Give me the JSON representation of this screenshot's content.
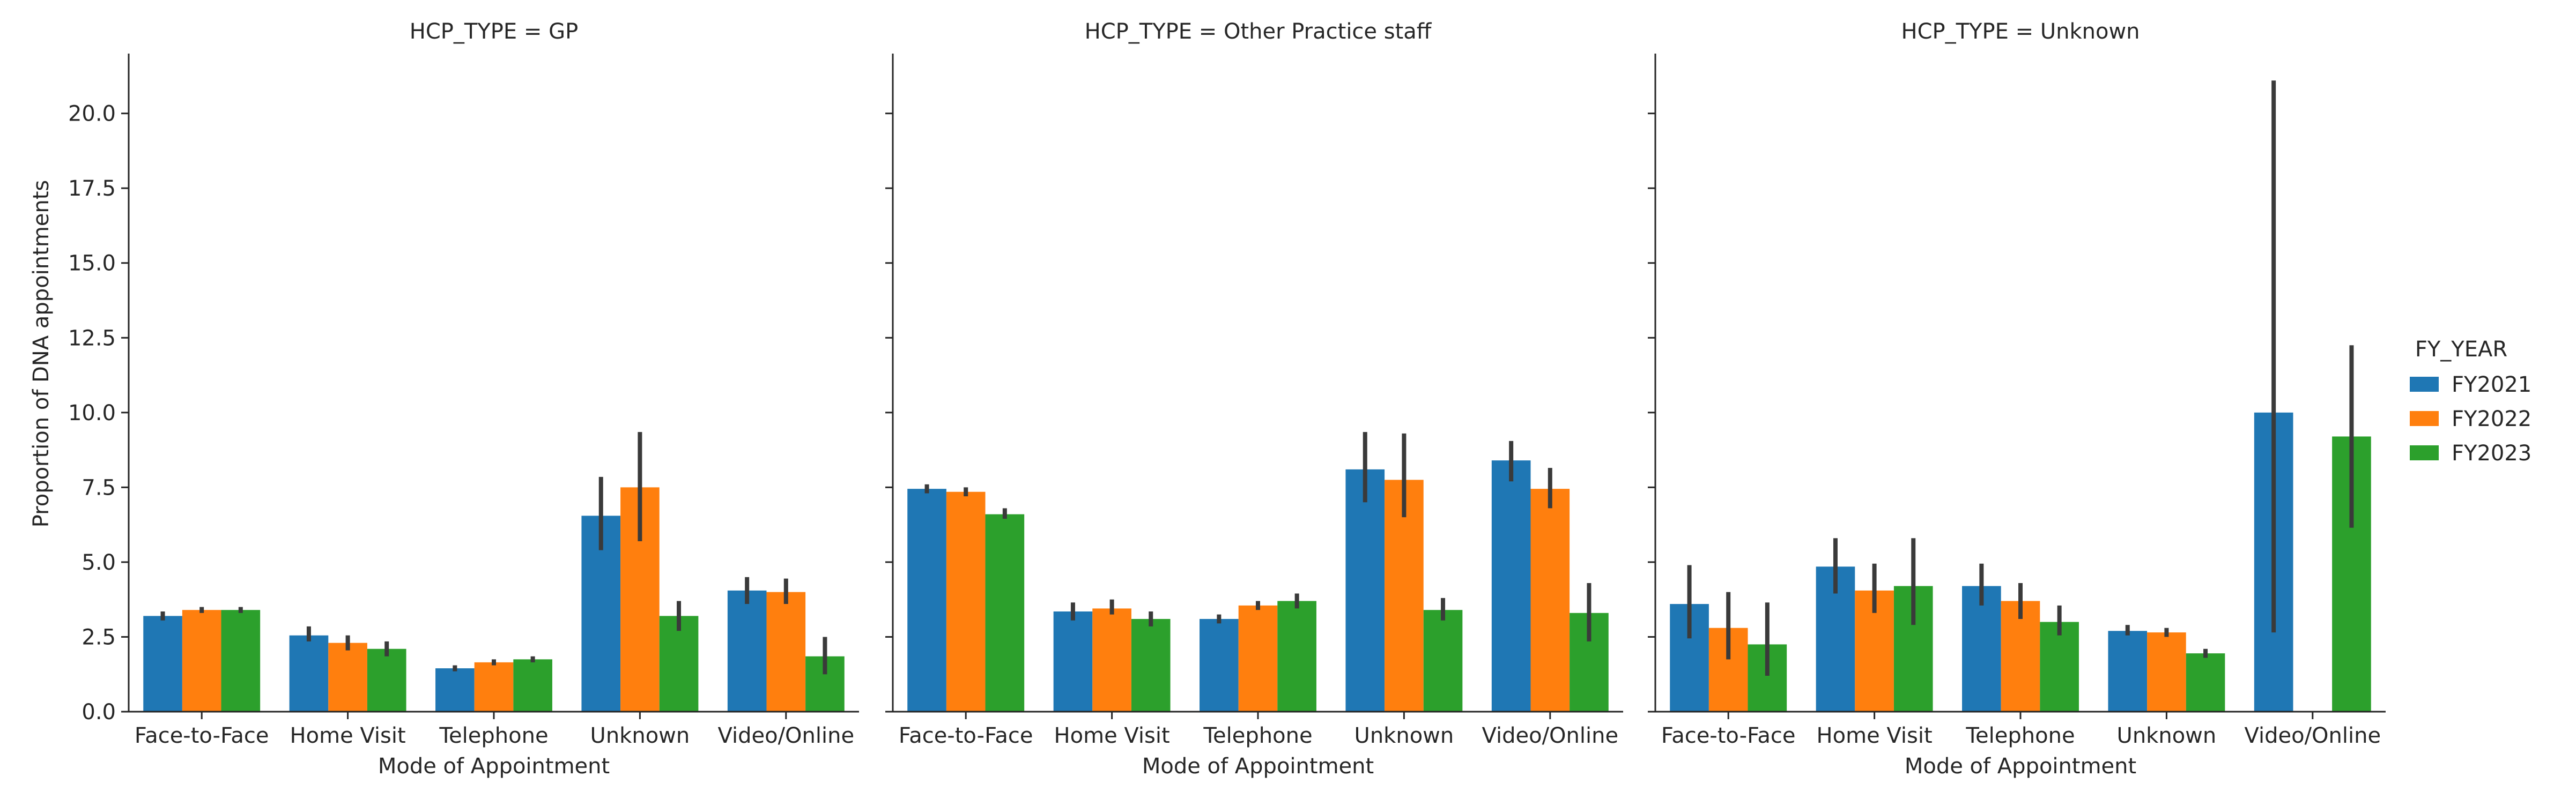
{
  "chart_data": {
    "type": "bar",
    "y_label": "Proportion of DNA appointments",
    "x_label": "Mode of Appointment",
    "ylim": [
      0,
      22
    ],
    "y_ticks": [
      "0.0",
      "2.5",
      "5.0",
      "7.5",
      "10.0",
      "12.5",
      "15.0",
      "17.5",
      "20.0"
    ],
    "legend": {
      "title": "FY_YEAR",
      "position": "right",
      "entries": [
        "FY2021",
        "FY2022",
        "FY2023"
      ]
    },
    "colors": [
      "#1f77b4",
      "#ff7f0e",
      "#2ca02c"
    ],
    "error_bar_color": "#3a3a3a",
    "panels": [
      {
        "title": "HCP_TYPE = GP",
        "categories": [
          "Face-to-Face",
          "Home Visit",
          "Telephone",
          "Unknown",
          "Video/Online"
        ],
        "series": [
          {
            "name": "FY2021",
            "values": [
              3.2,
              2.55,
              1.45,
              6.55,
              4.05
            ],
            "ci_low": [
              3.05,
              2.35,
              1.35,
              5.4,
              3.6
            ],
            "ci_high": [
              3.35,
              2.85,
              1.55,
              7.85,
              4.5
            ]
          },
          {
            "name": "FY2022",
            "values": [
              3.4,
              2.3,
              1.65,
              7.5,
              4.0
            ],
            "ci_low": [
              3.3,
              2.05,
              1.55,
              5.7,
              3.6
            ],
            "ci_high": [
              3.5,
              2.55,
              1.75,
              9.35,
              4.45
            ]
          },
          {
            "name": "FY2023",
            "values": [
              3.4,
              2.1,
              1.75,
              3.2,
              1.85
            ],
            "ci_low": [
              3.3,
              1.85,
              1.65,
              2.7,
              1.25
            ],
            "ci_high": [
              3.5,
              2.35,
              1.85,
              3.7,
              2.5
            ]
          }
        ]
      },
      {
        "title": "HCP_TYPE = Other Practice staff",
        "categories": [
          "Face-to-Face",
          "Home Visit",
          "Telephone",
          "Unknown",
          "Video/Online"
        ],
        "series": [
          {
            "name": "FY2021",
            "values": [
              7.45,
              3.35,
              3.1,
              8.1,
              8.4
            ],
            "ci_low": [
              7.3,
              3.05,
              2.95,
              7.0,
              7.7
            ],
            "ci_high": [
              7.6,
              3.65,
              3.25,
              9.35,
              9.05
            ]
          },
          {
            "name": "FY2022",
            "values": [
              7.35,
              3.45,
              3.55,
              7.75,
              7.45
            ],
            "ci_low": [
              7.2,
              3.25,
              3.4,
              6.5,
              6.8
            ],
            "ci_high": [
              7.5,
              3.75,
              3.7,
              9.3,
              8.15
            ]
          },
          {
            "name": "FY2023",
            "values": [
              6.6,
              3.1,
              3.7,
              3.4,
              3.3
            ],
            "ci_low": [
              6.45,
              2.85,
              3.45,
              3.05,
              2.35
            ],
            "ci_high": [
              6.8,
              3.35,
              3.95,
              3.8,
              4.3
            ]
          }
        ]
      },
      {
        "title": "HCP_TYPE = Unknown",
        "categories": [
          "Face-to-Face",
          "Home Visit",
          "Telephone",
          "Unknown",
          "Video/Online"
        ],
        "series": [
          {
            "name": "FY2021",
            "values": [
              3.6,
              4.85,
              4.2,
              2.7,
              10.0
            ],
            "ci_low": [
              2.45,
              3.95,
              3.55,
              2.55,
              2.65
            ],
            "ci_high": [
              4.9,
              5.8,
              4.95,
              2.9,
              21.1
            ]
          },
          {
            "name": "FY2022",
            "values": [
              2.8,
              4.05,
              3.7,
              2.65,
              0.0
            ],
            "ci_low": [
              1.75,
              3.3,
              3.1,
              2.5,
              0.0
            ],
            "ci_high": [
              4.0,
              4.95,
              4.3,
              2.8,
              0.0
            ]
          },
          {
            "name": "FY2023",
            "values": [
              2.25,
              4.2,
              3.0,
              1.95,
              9.2
            ],
            "ci_low": [
              1.2,
              2.9,
              2.55,
              1.8,
              6.15
            ],
            "ci_high": [
              3.65,
              5.8,
              3.55,
              2.1,
              12.25
            ]
          }
        ]
      }
    ]
  }
}
